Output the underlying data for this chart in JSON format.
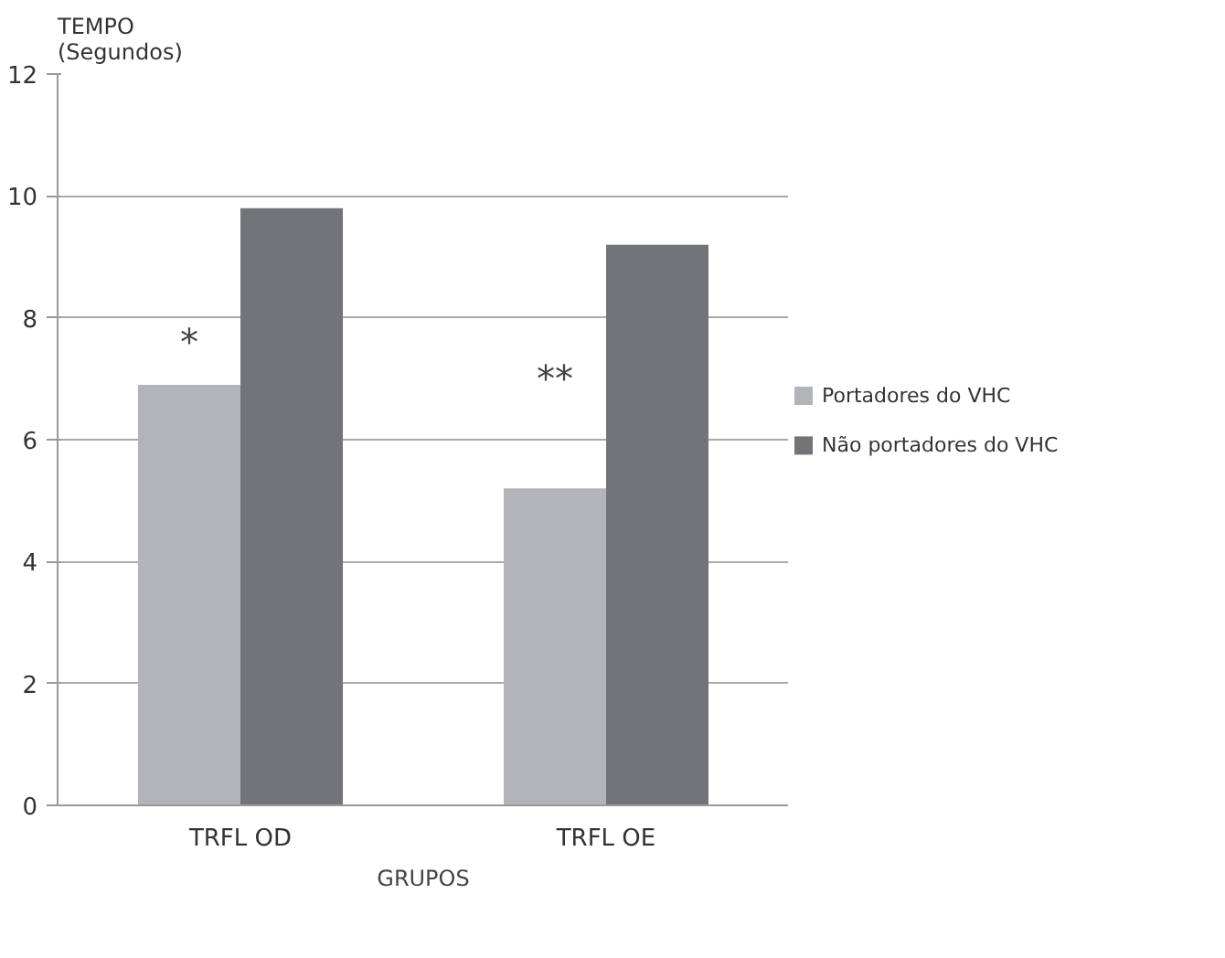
{
  "chart_data": {
    "type": "bar",
    "ylabel": "TEMPO\n(Segundos)",
    "xlabel": "GRUPOS",
    "categories": [
      "TRFL OD",
      "TRFL OE"
    ],
    "series": [
      {
        "name": "Portadores do VHC",
        "color": "#b3b4b7",
        "values": [
          6.9,
          5.2
        ]
      },
      {
        "name": "Não portadores do VHC",
        "color": "#737478",
        "values": [
          9.8,
          9.2
        ]
      }
    ],
    "ylim": [
      0,
      12
    ],
    "yticks": [
      0,
      2,
      4,
      6,
      8,
      10,
      12
    ],
    "grid": "y",
    "legend": "right",
    "annotations": [
      {
        "text": "*",
        "x": "TRFL OD",
        "y": 7.6
      },
      {
        "text": "**",
        "x": "TRFL OE",
        "y": 7.0
      }
    ]
  }
}
